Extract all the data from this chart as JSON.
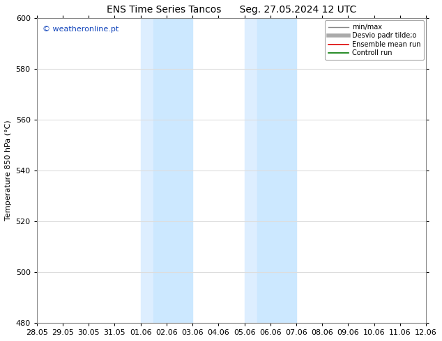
{
  "title_left": "ENS Time Series Tancos",
  "title_right": "Seg. 27.05.2024 12 UTC",
  "ylabel": "Temperature 850 hPa (°C)",
  "xlim_labels": [
    "28.05",
    "29.05",
    "30.05",
    "31.05",
    "01.06",
    "02.06",
    "03.06",
    "04.06",
    "05.06",
    "06.06",
    "07.06",
    "08.06",
    "09.06",
    "10.06",
    "11.06",
    "12.06"
  ],
  "ylim": [
    480,
    600
  ],
  "yticks": [
    480,
    500,
    520,
    540,
    560,
    580,
    600
  ],
  "background_color": "#ffffff",
  "plot_background": "#ffffff",
  "shaded_regions": [
    {
      "xstart": 4.0,
      "xend": 4.5,
      "color": "#ddeeff"
    },
    {
      "xstart": 4.5,
      "xend": 6.0,
      "color": "#cce8ff"
    },
    {
      "xstart": 8.0,
      "xend": 8.5,
      "color": "#ddeeff"
    },
    {
      "xstart": 8.5,
      "xend": 10.0,
      "color": "#cce8ff"
    }
  ],
  "watermark": "© weatheronline.pt",
  "watermark_color": "#1144bb",
  "legend_entries": [
    {
      "label": "min/max",
      "color": "#888888",
      "lw": 1.0,
      "style": "-"
    },
    {
      "label": "Desvio padr tilde;o",
      "color": "#aaaaaa",
      "lw": 4,
      "style": "-"
    },
    {
      "label": "Ensemble mean run",
      "color": "#dd0000",
      "lw": 1.2,
      "style": "-"
    },
    {
      "label": "Controll run",
      "color": "#007700",
      "lw": 1.2,
      "style": "-"
    }
  ],
  "grid_color": "#dddddd",
  "tick_fontsize": 8,
  "title_fontsize": 10,
  "figsize": [
    6.34,
    4.9
  ],
  "dpi": 100
}
